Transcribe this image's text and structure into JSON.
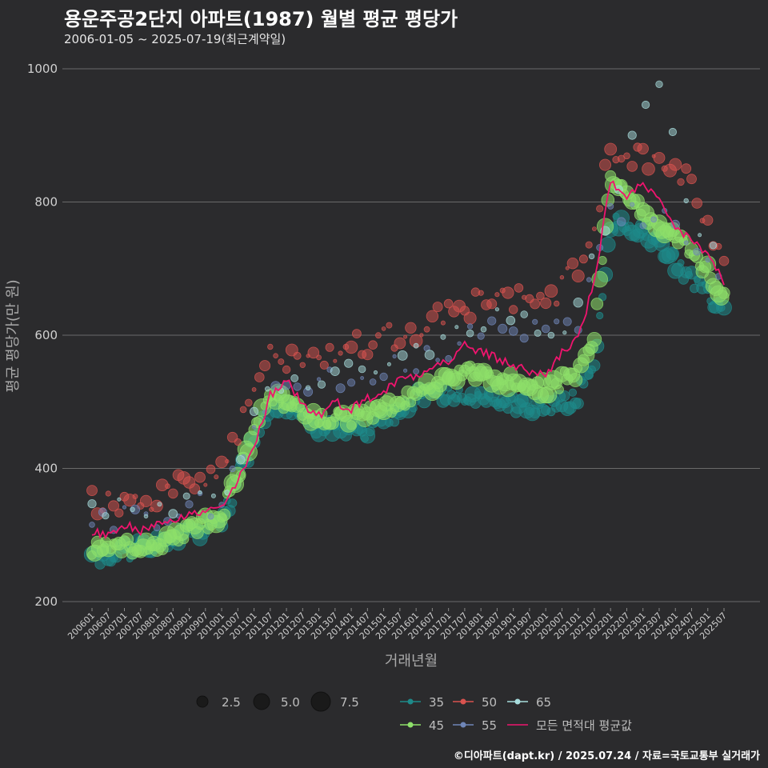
{
  "header": {
    "title": "용운주공2단지 아파트(1987) 월별 평균 평당가",
    "subtitle": "2006-01-05 ~ 2025-07-19(최근계약일)"
  },
  "footer": {
    "credit": "©디아파트(dapt.kr) / 2025.07.24 / 자료=국토교통부 실거래가"
  },
  "colors": {
    "background": "#2b2b2d",
    "grid": "#6a6a6a",
    "area_35": "#1e8a8a",
    "area_45": "#8ee06a",
    "area_50": "#d9534f",
    "area_55": "#6f86b8",
    "area_65": "#a7dcdc",
    "avg_line": "#f0146e"
  },
  "chart_data": {
    "type": "scatter",
    "title": "용운주공2단지 아파트(1987) 월별 평균 평당가",
    "xlabel": "거래년월",
    "ylabel": "평균 평당가(만 원)",
    "ylim": [
      200,
      1000
    ],
    "yticks": [
      200,
      400,
      600,
      800,
      1000
    ],
    "x_range": [
      "2006-01",
      "2025-07"
    ],
    "x_tick_labels": [
      "200601",
      "200607",
      "200701",
      "200707",
      "200801",
      "200807",
      "200901",
      "200907",
      "201001",
      "201007",
      "201101",
      "201107",
      "201201",
      "201207",
      "201301",
      "201307",
      "201401",
      "201407",
      "201501",
      "201507",
      "201601",
      "201607",
      "201701",
      "201707",
      "201801",
      "201807",
      "201901",
      "201907",
      "202001",
      "202007",
      "202101",
      "202107",
      "202201",
      "202207",
      "202301",
      "202307",
      "202401",
      "202407",
      "202501",
      "202507"
    ],
    "size_legend": {
      "title": "",
      "values": [
        2.5,
        5.0,
        7.5
      ],
      "labels": [
        "2.5",
        "5.0",
        "7.5"
      ]
    },
    "color_legend": [
      {
        "key": "35",
        "label": "35"
      },
      {
        "key": "50",
        "label": "50"
      },
      {
        "key": "65",
        "label": "65"
      },
      {
        "key": "45",
        "label": "45"
      },
      {
        "key": "55",
        "label": "55"
      },
      {
        "key": "avg",
        "label": "모든 면적대 평균값"
      }
    ],
    "series": [
      {
        "name": "모든 면적대 평균값",
        "type": "line",
        "anchors": [
          [
            "2006-01",
            305
          ],
          [
            "2006-07",
            300
          ],
          [
            "2007-01",
            315
          ],
          [
            "2007-07",
            305
          ],
          [
            "2008-01",
            320
          ],
          [
            "2008-07",
            325
          ],
          [
            "2009-01",
            330
          ],
          [
            "2009-07",
            335
          ],
          [
            "2010-01",
            340
          ],
          [
            "2010-07",
            380
          ],
          [
            "2011-01",
            430
          ],
          [
            "2011-07",
            510
          ],
          [
            "2012-01",
            535
          ],
          [
            "2012-07",
            495
          ],
          [
            "2013-01",
            480
          ],
          [
            "2013-07",
            500
          ],
          [
            "2014-01",
            490
          ],
          [
            "2014-07",
            505
          ],
          [
            "2015-01",
            515
          ],
          [
            "2015-07",
            535
          ],
          [
            "2016-01",
            540
          ],
          [
            "2016-07",
            555
          ],
          [
            "2017-01",
            560
          ],
          [
            "2017-07",
            585
          ],
          [
            "2018-01",
            575
          ],
          [
            "2018-07",
            565
          ],
          [
            "2019-01",
            555
          ],
          [
            "2019-07",
            545
          ],
          [
            "2020-01",
            540
          ],
          [
            "2020-07",
            575
          ],
          [
            "2021-01",
            595
          ],
          [
            "2021-07",
            680
          ],
          [
            "2022-01",
            830
          ],
          [
            "2022-07",
            810
          ],
          [
            "2023-01",
            825
          ],
          [
            "2023-07",
            800
          ],
          [
            "2024-01",
            760
          ],
          [
            "2024-07",
            745
          ],
          [
            "2025-01",
            720
          ],
          [
            "2025-07",
            680
          ]
        ]
      },
      {
        "name": "35",
        "baseline": [
          [
            "2006-01",
            265
          ],
          [
            "2008-01",
            285
          ],
          [
            "2010-01",
            320
          ],
          [
            "2011-07",
            500
          ],
          [
            "2013-01",
            460
          ],
          [
            "2014-07",
            455
          ],
          [
            "2016-01",
            505
          ],
          [
            "2017-01",
            510
          ],
          [
            "2018-07",
            500
          ],
          [
            "2020-01",
            490
          ],
          [
            "2021-01",
            510
          ],
          [
            "2021-07",
            560
          ],
          [
            "2022-01",
            770
          ],
          [
            "2023-07",
            740
          ],
          [
            "2024-07",
            680
          ],
          [
            "2025-07",
            640
          ]
        ]
      },
      {
        "name": "45",
        "baseline": [
          [
            "2006-01",
            280
          ],
          [
            "2008-01",
            285
          ],
          [
            "2010-01",
            330
          ],
          [
            "2011-07",
            510
          ],
          [
            "2013-01",
            470
          ],
          [
            "2014-07",
            480
          ],
          [
            "2016-01",
            510
          ],
          [
            "2017-07",
            545
          ],
          [
            "2018-07",
            535
          ],
          [
            "2020-01",
            520
          ],
          [
            "2021-01",
            545
          ],
          [
            "2021-07",
            600
          ],
          [
            "2022-01",
            830
          ],
          [
            "2023-07",
            760
          ],
          [
            "2024-07",
            730
          ],
          [
            "2025-07",
            660
          ]
        ]
      },
      {
        "name": "50",
        "baseline": [
          [
            "2006-01",
            345
          ],
          [
            "2008-01",
            355
          ],
          [
            "2010-01",
            395
          ],
          [
            "2011-07",
            565
          ],
          [
            "2013-01",
            575
          ],
          [
            "2014-07",
            590
          ],
          [
            "2016-01",
            610
          ],
          [
            "2017-07",
            640
          ],
          [
            "2018-07",
            660
          ],
          [
            "2020-01",
            650
          ],
          [
            "2021-01",
            700
          ],
          [
            "2021-07",
            780
          ],
          [
            "2022-01",
            870
          ],
          [
            "2023-07",
            870
          ],
          [
            "2024-07",
            820
          ],
          [
            "2025-07",
            720
          ]
        ]
      },
      {
        "name": "55",
        "baseline": [
          [
            "2006-01",
            320
          ],
          [
            "2008-01",
            330
          ],
          [
            "2010-01",
            350
          ],
          [
            "2011-07",
            520
          ],
          [
            "2013-01",
            530
          ],
          [
            "2014-07",
            540
          ],
          [
            "2016-01",
            560
          ],
          [
            "2017-07",
            590
          ],
          [
            "2018-07",
            610
          ],
          [
            "2020-01",
            600
          ],
          [
            "2021-01",
            620
          ],
          [
            "2021-07",
            700
          ],
          [
            "2022-01",
            790
          ],
          [
            "2023-07",
            780
          ],
          [
            "2024-07",
            740
          ],
          [
            "2025-07",
            700
          ]
        ]
      },
      {
        "name": "65",
        "baseline": [
          [
            "2006-01",
            330
          ],
          [
            "2008-01",
            340
          ],
          [
            "2010-01",
            360
          ],
          [
            "2011-07",
            530
          ],
          [
            "2013-01",
            540
          ],
          [
            "2014-07",
            560
          ],
          [
            "2016-01",
            580
          ],
          [
            "2017-07",
            610
          ],
          [
            "2018-07",
            640
          ],
          [
            "2020-01",
            600
          ],
          [
            "2021-01",
            640
          ],
          [
            "2021-07",
            720
          ],
          [
            "2022-01",
            800
          ],
          [
            "2023-07",
            985
          ],
          [
            "2024-07",
            760
          ],
          [
            "2025-07",
            700
          ]
        ]
      }
    ]
  }
}
